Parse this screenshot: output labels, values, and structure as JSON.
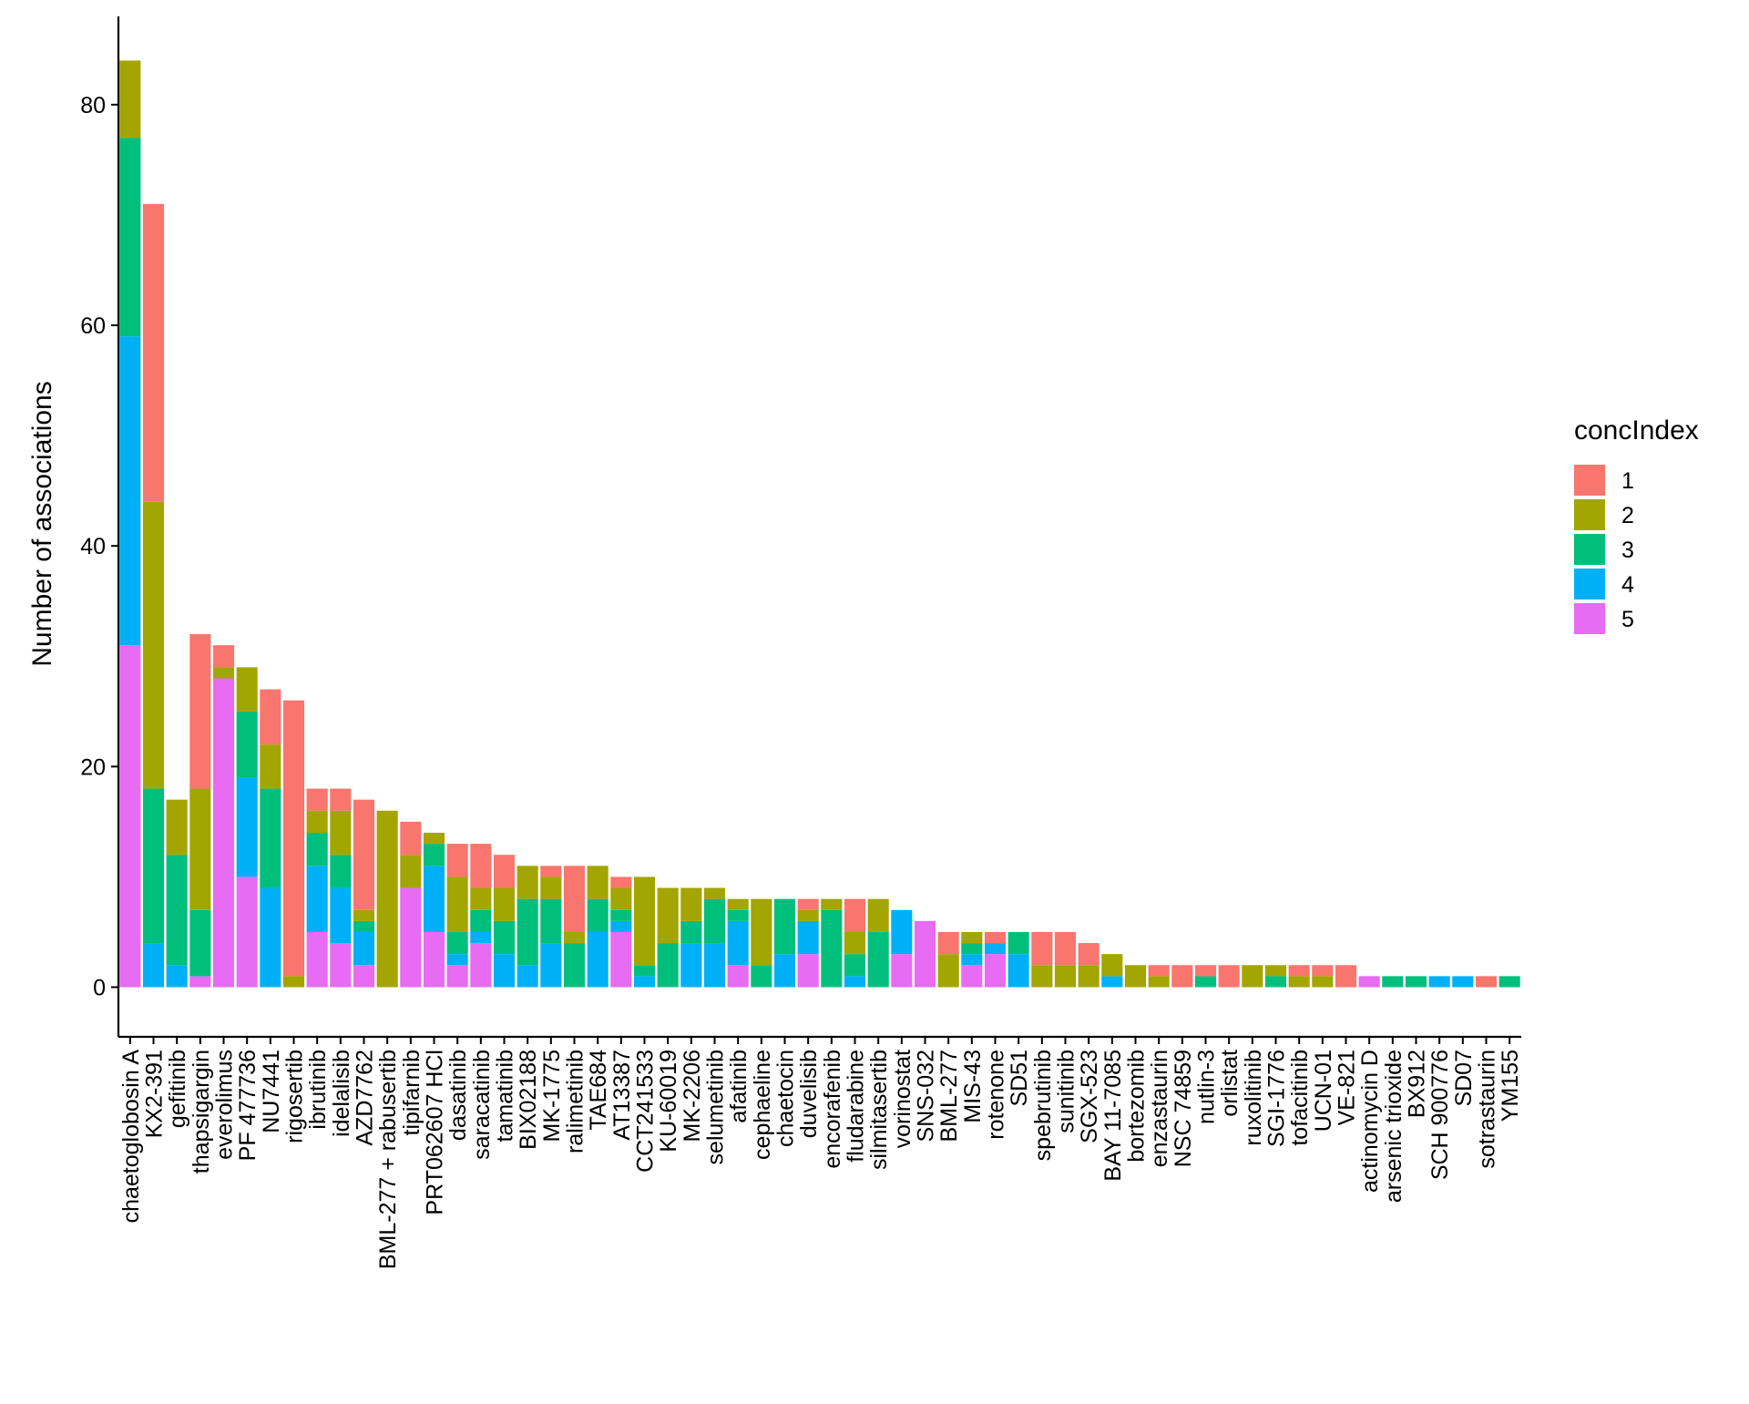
{
  "chart_data": {
    "type": "bar",
    "stacked": true,
    "title": "",
    "xlabel": "",
    "ylabel": "Number of associations",
    "ylim": [
      -4.5,
      88
    ],
    "yticks": [
      0,
      20,
      40,
      60,
      80
    ],
    "grid": false,
    "legend": {
      "title": "concIndex",
      "position": "right"
    },
    "categories": [
      "chaetoglobosin A",
      "KX2-391",
      "gefitinib",
      "thapsigargin",
      "everolimus",
      "PF 477736",
      "NU7441",
      "rigosertib",
      "ibrutinib",
      "idelalisib",
      "AZD7762",
      "BML-277 + rabusertib",
      "tipifarnib",
      "PRT062607 HCl",
      "dasatinib",
      "saracatinib",
      "tamatinib",
      "BIX02188",
      "MK-1775",
      "ralimetinib",
      "TAE684",
      "AT13387",
      "CCT241533",
      "KU-60019",
      "MK-2206",
      "selumetinib",
      "afatinib",
      "cephaeline",
      "chaetocin",
      "duvelisib",
      "encorafenib",
      "fludarabine",
      "silmitasertib",
      "vorinostat",
      "SNS-032",
      "BML-277",
      "MIS-43",
      "rotenone",
      "SD51",
      "spebrutinib",
      "sunitinib",
      "SGX-523",
      "BAY 11-7085",
      "bortezomib",
      "enzastaurin",
      "NSC 74859",
      "nutlin-3",
      "orlistat",
      "ruxolitinib",
      "SGI-1776",
      "tofacitinib",
      "UCN-01",
      "VE-821",
      "actinomycin D",
      "arsenic trioxide",
      "BX912",
      "SCH 900776",
      "SD07",
      "sotrastaurin",
      "YM155"
    ],
    "series": [
      {
        "name": "1",
        "color": "#F8766D",
        "values": [
          0,
          27,
          0,
          14,
          2,
          0,
          5,
          25,
          2,
          2,
          10,
          0,
          3,
          0,
          3,
          4,
          3,
          0,
          1,
          6,
          0,
          1,
          0,
          0,
          0,
          0,
          0,
          0,
          0,
          1,
          0,
          3,
          0,
          0,
          0,
          2,
          0,
          1,
          0,
          3,
          3,
          2,
          0,
          0,
          1,
          2,
          1,
          2,
          0,
          0,
          1,
          1,
          2,
          0,
          0,
          0,
          0,
          0,
          1,
          0
        ]
      },
      {
        "name": "2",
        "color": "#A3A500",
        "values": [
          7,
          26,
          5,
          11,
          1,
          4,
          4,
          1,
          2,
          4,
          1,
          16,
          3,
          1,
          5,
          2,
          3,
          3,
          2,
          1,
          3,
          2,
          8,
          5,
          3,
          1,
          1,
          6,
          0,
          1,
          1,
          2,
          3,
          0,
          0,
          3,
          1,
          0,
          0,
          2,
          2,
          2,
          2,
          2,
          1,
          0,
          0,
          0,
          2,
          1,
          1,
          1,
          0,
          0,
          0,
          0,
          0,
          0,
          0,
          0
        ]
      },
      {
        "name": "3",
        "color": "#00BF7D",
        "values": [
          18,
          14,
          10,
          6,
          0,
          6,
          9,
          0,
          3,
          3,
          1,
          0,
          0,
          2,
          2,
          2,
          3,
          6,
          4,
          4,
          3,
          1,
          1,
          4,
          2,
          4,
          1,
          2,
          5,
          0,
          7,
          2,
          5,
          0,
          0,
          0,
          1,
          0,
          2,
          0,
          0,
          0,
          0,
          0,
          0,
          0,
          1,
          0,
          0,
          1,
          0,
          0,
          0,
          0,
          1,
          1,
          0,
          0,
          0,
          1
        ]
      },
      {
        "name": "4",
        "color": "#00B0F6",
        "values": [
          28,
          4,
          2,
          0,
          0,
          9,
          9,
          0,
          6,
          5,
          3,
          0,
          0,
          6,
          1,
          1,
          3,
          2,
          4,
          0,
          5,
          1,
          1,
          0,
          4,
          4,
          4,
          0,
          3,
          3,
          0,
          1,
          0,
          4,
          0,
          0,
          1,
          1,
          3,
          0,
          0,
          0,
          1,
          0,
          0,
          0,
          0,
          0,
          0,
          0,
          0,
          0,
          0,
          0,
          0,
          0,
          1,
          1,
          0,
          0
        ]
      },
      {
        "name": "5",
        "color": "#E76BF3",
        "values": [
          31,
          0,
          0,
          1,
          28,
          10,
          0,
          0,
          5,
          4,
          2,
          0,
          9,
          5,
          2,
          4,
          0,
          0,
          0,
          0,
          0,
          5,
          0,
          0,
          0,
          0,
          2,
          0,
          0,
          3,
          0,
          0,
          0,
          3,
          6,
          0,
          2,
          3,
          0,
          0,
          0,
          0,
          0,
          0,
          0,
          0,
          0,
          0,
          0,
          0,
          0,
          0,
          0,
          1,
          0,
          0,
          0,
          0,
          0,
          0
        ]
      }
    ]
  }
}
